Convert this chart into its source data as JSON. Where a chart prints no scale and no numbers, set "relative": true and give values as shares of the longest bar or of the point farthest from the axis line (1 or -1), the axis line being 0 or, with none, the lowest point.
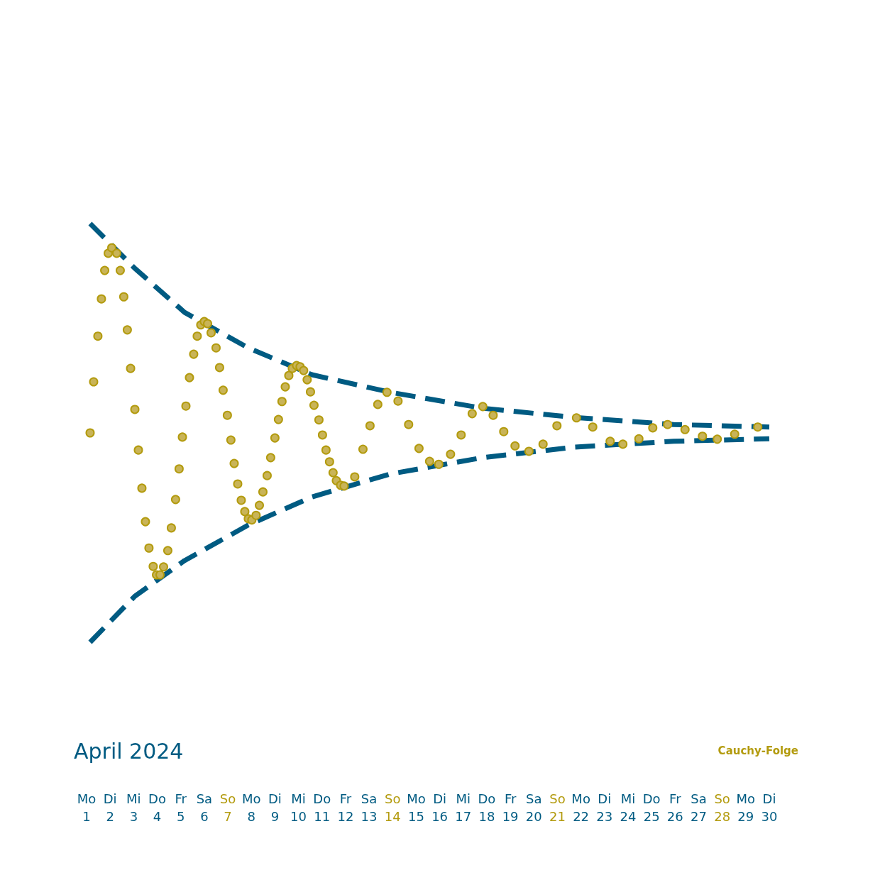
{
  "chart_data": {
    "type": "scatter",
    "title": "Cauchy-Folge",
    "annotations": [
      "April 2024",
      "Mo",
      "Di",
      "Mi",
      "Do",
      "Fr",
      "Sa",
      "So",
      "Mo",
      "Di",
      "Mi",
      "Do",
      "Fr",
      "Sa",
      "So",
      "Mo",
      "Di",
      "Mi",
      "Do",
      "Fr",
      "Sa",
      "So",
      "Mo",
      "Di",
      "Mi",
      "Do",
      "Fr",
      "Sa",
      "So",
      "Mo",
      "Di"
    ],
    "relative": true,
    "xlim": [
      1,
      30
    ],
    "marker": "circle",
    "tick_labels": "x",
    "xticks": [
      1,
      2,
      3,
      4,
      5,
      6,
      7,
      8,
      9,
      10,
      11,
      12,
      13,
      14,
      15,
      16,
      17,
      18,
      19,
      20,
      21,
      22,
      23,
      24,
      25,
      26,
      27,
      28,
      29,
      30
    ],
    "series": [
      {
        "type": "scatter",
        "color": "#c9b458",
        "x": [
          1.15,
          1.3,
          1.48,
          1.63,
          1.77,
          1.92,
          2.07,
          2.28,
          2.43,
          2.58,
          2.73,
          2.87,
          3.05,
          3.2,
          3.35,
          3.5,
          3.65,
          3.83,
          3.97,
          4.12,
          4.27,
          4.45,
          4.6,
          4.78,
          4.93,
          5.07,
          5.22,
          5.37,
          5.55,
          5.7,
          5.85,
          6.0,
          6.14,
          6.29,
          6.5,
          6.65,
          6.8,
          6.98,
          7.13,
          7.27,
          7.42,
          7.57,
          7.72,
          7.87,
          8.02,
          8.2,
          8.34,
          8.49,
          8.67,
          8.82,
          9.0,
          9.15,
          9.3,
          9.44,
          9.59,
          9.74,
          9.92,
          10.07,
          10.22,
          10.37,
          10.51,
          10.66,
          10.87,
          11.02,
          11.17,
          11.32,
          11.47,
          11.61,
          11.79,
          11.94,
          12.39,
          12.74,
          13.04,
          13.37,
          13.76,
          14.23,
          14.68,
          15.12,
          15.57,
          15.96,
          16.46,
          16.91,
          17.38,
          17.83,
          18.27,
          18.72,
          19.2,
          19.79,
          20.39,
          20.98,
          21.81,
          22.5,
          23.24,
          23.78,
          24.46,
          25.05,
          25.68,
          26.42,
          27.16,
          27.79,
          28.53,
          29.51
        ],
        "values": [
          0.5,
          0.622,
          0.731,
          0.82,
          0.888,
          0.929,
          0.942,
          0.929,
          0.888,
          0.825,
          0.746,
          0.654,
          0.556,
          0.459,
          0.368,
          0.288,
          0.225,
          0.181,
          0.161,
          0.161,
          0.18,
          0.219,
          0.273,
          0.341,
          0.414,
          0.49,
          0.564,
          0.632,
          0.688,
          0.731,
          0.758,
          0.766,
          0.761,
          0.739,
          0.703,
          0.656,
          0.602,
          0.542,
          0.483,
          0.427,
          0.378,
          0.339,
          0.312,
          0.295,
          0.292,
          0.303,
          0.327,
          0.359,
          0.398,
          0.441,
          0.488,
          0.532,
          0.575,
          0.61,
          0.637,
          0.654,
          0.661,
          0.658,
          0.649,
          0.627,
          0.598,
          0.566,
          0.531,
          0.495,
          0.459,
          0.431,
          0.405,
          0.386,
          0.375,
          0.373,
          0.395,
          0.461,
          0.517,
          0.568,
          0.597,
          0.576,
          0.52,
          0.463,
          0.432,
          0.425,
          0.449,
          0.495,
          0.546,
          0.563,
          0.542,
          0.503,
          0.469,
          0.456,
          0.473,
          0.517,
          0.536,
          0.514,
          0.48,
          0.473,
          0.486,
          0.512,
          0.52,
          0.508,
          0.492,
          0.485,
          0.497,
          0.514
        ]
      },
      {
        "type": "line",
        "color": "#005b82",
        "line_style": "dashed",
        "marker": "none",
        "x": [
          1.15,
          3.05,
          5.16,
          7.87,
          10.57,
          13.9,
          17.83,
          21.72,
          25.94,
          30
        ],
        "values": [
          1,
          0.893,
          0.788,
          0.703,
          0.639,
          0.597,
          0.559,
          0.537,
          0.52,
          0.514
        ]
      },
      {
        "type": "line",
        "color": "#005b82",
        "line_style": "dashed",
        "marker": "none",
        "x": [
          1.15,
          3.05,
          5.16,
          7.87,
          10.57,
          13.9,
          17.83,
          21.72,
          25.94,
          30
        ],
        "values": [
          0,
          0.11,
          0.195,
          0.28,
          0.347,
          0.402,
          0.441,
          0.466,
          0.48,
          0.486
        ]
      }
    ]
  }
}
